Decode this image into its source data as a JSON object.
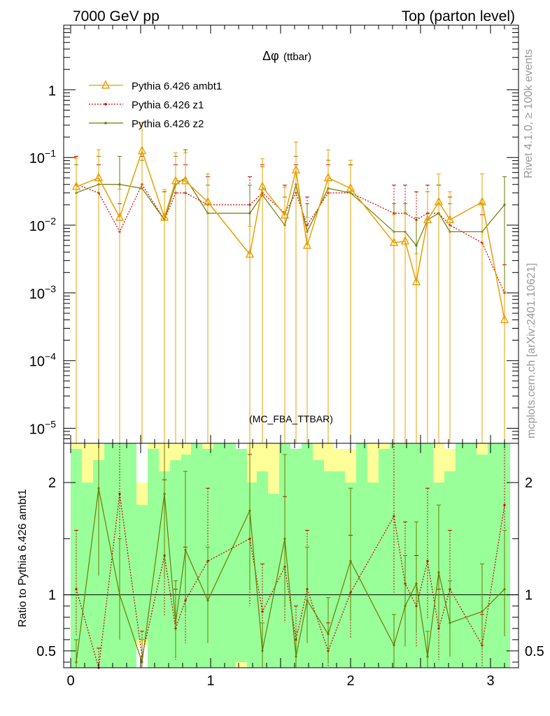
{
  "header": {
    "left_title": "7000 GeV pp",
    "right_title": "Top (parton level)"
  },
  "side_labels": {
    "rivet": "Rivet 4.1.0, ≥ 100k events",
    "source": "mcplots.cern.ch [arXiv:2401.10621]"
  },
  "colors": {
    "ambt1": "#e8a000",
    "z1": "#cc0000",
    "z2": "#6e7a00",
    "band_green": "#99ff99",
    "band_yellow": "#ffff99"
  },
  "chart_data": [
    {
      "type": "line",
      "title": "Δφ (ttbar)",
      "title_symbol": "Δφ",
      "title_suffix": "(ttbar)",
      "watermark": "(MC_FBA_TTBAR)",
      "xlabel": "",
      "ylabel": "",
      "yscale": "log",
      "xlim": [
        -0.05,
        3.2
      ],
      "ylim": [
        6e-06,
        9
      ],
      "x": [
        0.04,
        0.2,
        0.35,
        0.51,
        0.67,
        0.75,
        0.82,
        0.98,
        1.28,
        1.37,
        1.53,
        1.61,
        1.69,
        1.84,
        2.0,
        2.31,
        2.39,
        2.47,
        2.55,
        2.63,
        2.71,
        2.94,
        3.1
      ],
      "series": [
        {
          "name": "Pythia 6.426 ambt1",
          "values": [
            0.037,
            0.05,
            0.013,
            0.125,
            0.013,
            0.045,
            0.045,
            0.022,
            0.0037,
            0.037,
            0.014,
            0.065,
            0.005,
            0.05,
            0.035,
            0.0055,
            0.0058,
            0.00145,
            0.012,
            0.022,
            0.012,
            0.022,
            0.0004
          ]
        },
        {
          "name": "Pythia 6.426 z1",
          "values": [
            0.04,
            0.03,
            0.008,
            0.04,
            0.012,
            0.03,
            0.03,
            0.02,
            0.02,
            0.03,
            0.015,
            0.03,
            0.01,
            0.03,
            0.03,
            0.015,
            0.015,
            0.012,
            0.015,
            0.015,
            0.01,
            0.0055,
            0.001
          ]
        },
        {
          "name": "Pythia 6.426 z2",
          "values": [
            0.03,
            0.04,
            0.04,
            0.035,
            0.012,
            0.04,
            0.05,
            0.015,
            0.015,
            0.028,
            0.01,
            0.04,
            0.008,
            0.035,
            0.03,
            0.008,
            0.008,
            0.005,
            0.012,
            0.015,
            0.008,
            0.008,
            0.02
          ]
        }
      ],
      "yticks": [
        {
          "base": "10",
          "exp": "−5"
        },
        {
          "base": "10",
          "exp": "−4"
        },
        {
          "base": "10",
          "exp": "−3"
        },
        {
          "base": "10",
          "exp": "−2"
        },
        {
          "base": "10",
          "exp": "−1"
        },
        {
          "base": "1",
          "exp": ""
        }
      ]
    },
    {
      "type": "line",
      "title": "",
      "xlabel": "",
      "ylabel": "Ratio to Pythia 6.426 ambt1",
      "xlim": [
        -0.05,
        3.2
      ],
      "ylim": [
        0.35,
        2.35
      ],
      "reference_line": 1,
      "yticks": [
        "0.5",
        "1",
        "2"
      ],
      "xticks": [
        "0",
        "1",
        "2",
        "3"
      ],
      "x": [
        0.04,
        0.2,
        0.35,
        0.51,
        0.67,
        0.75,
        0.82,
        0.98,
        1.28,
        1.37,
        1.53,
        1.61,
        1.69,
        1.84,
        2.0,
        2.31,
        2.39,
        2.47,
        2.55,
        2.63,
        2.71,
        2.94,
        3.1
      ],
      "series": [
        {
          "name": "Pythia 6.426 z1",
          "values": [
            1.05,
            0.35,
            1.9,
            0.45,
            1.35,
            0.7,
            0.95,
            1.3,
            1.5,
            0.85,
            1.25,
            0.6,
            1.05,
            0.5,
            1.02,
            1.7,
            1.1,
            0.9,
            1.3,
            0.7,
            1.05,
            0.55,
            1.8
          ]
        },
        {
          "name": "Pythia 6.426 z2",
          "values": [
            0.4,
            1.95,
            1.0,
            0.4,
            1.9,
            0.75,
            1.4,
            0.95,
            1.75,
            0.5,
            1.5,
            0.45,
            0.95,
            0.65,
            1.3,
            0.55,
            0.9,
            1.1,
            0.45,
            1.2,
            0.75,
            0.85,
            1.05
          ]
        }
      ],
      "band_bins": [
        {
          "x0": 0.0,
          "x1": 0.08,
          "yellow": [
            0.35,
            2.35
          ],
          "green": [
            0.35,
            2.3
          ]
        },
        {
          "x0": 0.08,
          "x1": 0.16,
          "yellow": [
            0.35,
            2.35
          ],
          "green": [
            0.35,
            2.0
          ]
        },
        {
          "x0": 0.16,
          "x1": 0.24,
          "yellow": [
            0.35,
            2.35
          ],
          "green": [
            0.35,
            2.2
          ]
        },
        {
          "x0": 0.24,
          "x1": 0.31,
          "yellow": [
            0.35,
            2.35
          ],
          "green": [
            0.35,
            2.35
          ]
        },
        {
          "x0": 0.31,
          "x1": 0.39,
          "yellow": [
            0.35,
            2.35
          ],
          "green": [
            0.35,
            2.35
          ]
        },
        {
          "x0": 0.39,
          "x1": 0.47,
          "yellow": [
            0.35,
            2.35
          ],
          "green": [
            0.35,
            2.35
          ]
        },
        {
          "x0": 0.47,
          "x1": 0.55,
          "yellow": [
            0.55,
            2.0
          ],
          "green": [
            0.6,
            1.8
          ]
        },
        {
          "x0": 0.55,
          "x1": 0.63,
          "yellow": [
            0.35,
            2.35
          ],
          "green": [
            0.35,
            2.3
          ]
        },
        {
          "x0": 0.63,
          "x1": 0.71,
          "yellow": [
            0.35,
            2.35
          ],
          "green": [
            0.35,
            2.1
          ]
        },
        {
          "x0": 0.71,
          "x1": 0.79,
          "yellow": [
            0.35,
            2.35
          ],
          "green": [
            0.35,
            2.2
          ]
        },
        {
          "x0": 0.79,
          "x1": 0.86,
          "yellow": [
            0.35,
            2.35
          ],
          "green": [
            0.35,
            2.25
          ]
        },
        {
          "x0": 0.86,
          "x1": 0.94,
          "yellow": [
            0.35,
            2.35
          ],
          "green": [
            0.35,
            2.35
          ]
        },
        {
          "x0": 0.94,
          "x1": 1.02,
          "yellow": [
            0.35,
            2.35
          ],
          "green": [
            0.35,
            2.3
          ]
        },
        {
          "x0": 1.02,
          "x1": 1.1,
          "yellow": [
            0.35,
            2.35
          ],
          "green": [
            0.35,
            2.35
          ]
        },
        {
          "x0": 1.1,
          "x1": 1.18,
          "yellow": [
            0.35,
            2.35
          ],
          "green": [
            0.35,
            2.35
          ]
        },
        {
          "x0": 1.18,
          "x1": 1.26,
          "yellow": [
            0.35,
            2.3
          ],
          "green": [
            0.4,
            2.3
          ]
        },
        {
          "x0": 1.26,
          "x1": 1.33,
          "yellow": [
            0.35,
            2.35
          ],
          "green": [
            0.35,
            2.0
          ]
        },
        {
          "x0": 1.33,
          "x1": 1.41,
          "yellow": [
            0.35,
            2.35
          ],
          "green": [
            0.35,
            2.1
          ]
        },
        {
          "x0": 1.41,
          "x1": 1.49,
          "yellow": [
            0.35,
            2.35
          ],
          "green": [
            0.35,
            1.9
          ]
        },
        {
          "x0": 1.49,
          "x1": 1.57,
          "yellow": [
            0.35,
            2.35
          ],
          "green": [
            0.35,
            2.35
          ]
        },
        {
          "x0": 1.57,
          "x1": 1.65,
          "yellow": [
            0.35,
            2.3
          ],
          "green": [
            0.35,
            2.3
          ]
        },
        {
          "x0": 1.65,
          "x1": 1.73,
          "yellow": [
            0.35,
            2.35
          ],
          "green": [
            0.35,
            2.35
          ]
        },
        {
          "x0": 1.73,
          "x1": 1.81,
          "yellow": [
            0.35,
            2.35
          ],
          "green": [
            0.35,
            2.2
          ]
        },
        {
          "x0": 1.81,
          "x1": 1.88,
          "yellow": [
            0.35,
            2.35
          ],
          "green": [
            0.35,
            2.1
          ]
        },
        {
          "x0": 1.88,
          "x1": 1.96,
          "yellow": [
            0.35,
            2.3
          ],
          "green": [
            0.35,
            2.1
          ]
        },
        {
          "x0": 1.96,
          "x1": 2.04,
          "yellow": [
            0.35,
            2.3
          ],
          "green": [
            0.35,
            2.0
          ]
        },
        {
          "x0": 2.04,
          "x1": 2.12,
          "yellow": [
            0.35,
            2.35
          ],
          "green": [
            0.35,
            2.35
          ]
        },
        {
          "x0": 2.12,
          "x1": 2.2,
          "yellow": [
            0.35,
            2.35
          ],
          "green": [
            0.35,
            2.0
          ]
        },
        {
          "x0": 2.2,
          "x1": 2.28,
          "yellow": [
            0.35,
            2.35
          ],
          "green": [
            0.35,
            2.3
          ]
        },
        {
          "x0": 2.28,
          "x1": 2.36,
          "yellow": [
            0.35,
            2.35
          ],
          "green": [
            0.35,
            2.35
          ]
        },
        {
          "x0": 2.36,
          "x1": 2.43,
          "yellow": [
            0.35,
            2.35
          ],
          "green": [
            0.35,
            2.35
          ]
        },
        {
          "x0": 2.43,
          "x1": 2.51,
          "yellow": [
            0.35,
            2.35
          ],
          "green": [
            0.35,
            2.35
          ]
        },
        {
          "x0": 2.51,
          "x1": 2.59,
          "yellow": [
            0.35,
            2.35
          ],
          "green": [
            0.35,
            2.35
          ]
        },
        {
          "x0": 2.59,
          "x1": 2.67,
          "yellow": [
            0.35,
            2.35
          ],
          "green": [
            0.35,
            2.0
          ]
        },
        {
          "x0": 2.67,
          "x1": 2.75,
          "yellow": [
            0.35,
            2.3
          ],
          "green": [
            0.35,
            2.1
          ]
        },
        {
          "x0": 2.75,
          "x1": 2.83,
          "yellow": [
            0.35,
            2.35
          ],
          "green": [
            0.35,
            2.35
          ]
        },
        {
          "x0": 2.83,
          "x1": 2.9,
          "yellow": [
            0.35,
            2.35
          ],
          "green": [
            0.35,
            2.35
          ]
        },
        {
          "x0": 2.9,
          "x1": 2.98,
          "yellow": [
            0.35,
            2.35
          ],
          "green": [
            0.35,
            2.25
          ]
        },
        {
          "x0": 2.98,
          "x1": 3.06,
          "yellow": [
            0.35,
            2.35
          ],
          "green": [
            0.35,
            2.35
          ]
        },
        {
          "x0": 3.06,
          "x1": 3.14,
          "yellow": [
            0.35,
            2.35
          ],
          "green": [
            0.35,
            2.35
          ]
        }
      ]
    }
  ]
}
